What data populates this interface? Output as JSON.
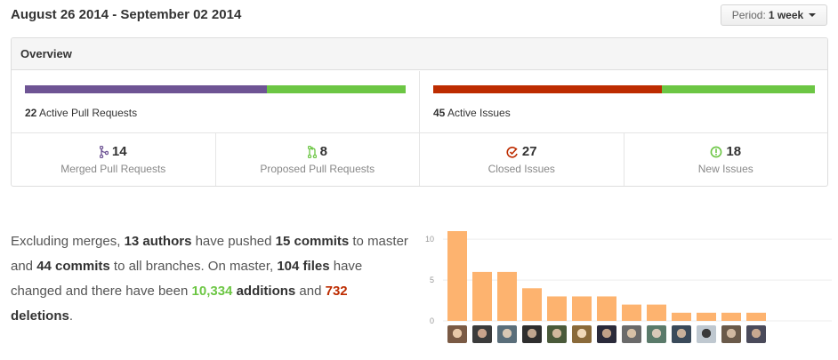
{
  "header": {
    "date_range": "August 26 2014 - September 02 2014",
    "period_label": "Period:",
    "period_value": "1 week"
  },
  "overview": {
    "title": "Overview",
    "pull_requests": {
      "active_count": "22",
      "active_label": "Active Pull Requests",
      "merged_fraction": 0.636,
      "merged_color": "#6e5494",
      "proposed_color": "#6cc644"
    },
    "issues": {
      "active_count": "45",
      "active_label": "Active Issues",
      "closed_fraction": 0.6,
      "closed_color": "#bd2c00",
      "new_color": "#6cc644"
    },
    "stats": [
      {
        "icon": "git-merge-icon",
        "value": "14",
        "label": "Merged Pull Requests"
      },
      {
        "icon": "git-pull-request-icon",
        "value": "8",
        "label": "Proposed Pull Requests"
      },
      {
        "icon": "issue-closed-icon",
        "value": "27",
        "label": "Closed Issues"
      },
      {
        "icon": "issue-opened-icon",
        "value": "18",
        "label": "New Issues"
      }
    ]
  },
  "summary": {
    "t1": "Excluding merges, ",
    "authors": "13 authors",
    "t2": " have pushed ",
    "commits": "15 commits",
    "t3": " to master and ",
    "all_commits": "44 commits",
    "t4": " to all branches. On master, ",
    "files": "104 files",
    "t5": " have changed and there have been ",
    "additions_num": "10,334",
    "additions_word": " additions",
    "t6": " and ",
    "deletions_num": "732",
    "deletions_word": " deletions",
    "t7": "."
  },
  "chart_data": {
    "type": "bar",
    "categories": [
      "author-1",
      "author-2",
      "author-3",
      "author-4",
      "author-5",
      "author-6",
      "author-7",
      "author-8",
      "author-9",
      "author-10",
      "author-11",
      "author-12",
      "author-13"
    ],
    "values": [
      11,
      6,
      6,
      4,
      3,
      3,
      3,
      2,
      2,
      1,
      1,
      1,
      1
    ],
    "ylim": [
      0,
      11
    ],
    "yticks": [
      "0",
      "5",
      "10"
    ],
    "bar_color": "#fdb36f",
    "grid": true
  }
}
